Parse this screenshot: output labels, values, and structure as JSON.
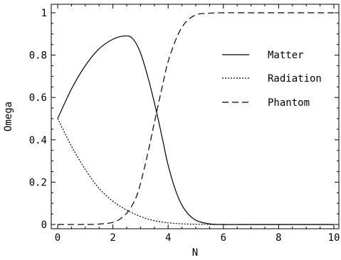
{
  "chart_data": {
    "type": "line",
    "title": "",
    "xlabel": "N",
    "ylabel": "Omega",
    "xlim": [
      0,
      10
    ],
    "ylim": [
      0,
      1
    ],
    "xticks": [
      "0",
      "2",
      "4",
      "6",
      "8",
      "10"
    ],
    "yticks": [
      "0",
      "0.2",
      "0.4",
      "0.6",
      "0.8",
      "1"
    ],
    "legend_position": "upper-right",
    "grid": false,
    "series": [
      {
        "name": "Matter",
        "style": "solid",
        "x": [
          0,
          0.5,
          1.0,
          1.5,
          2.0,
          2.4,
          2.7,
          3.0,
          3.3,
          3.6,
          3.8,
          4.0,
          4.3,
          4.6,
          5.0,
          5.5,
          6.0,
          7.0,
          8.0,
          9.0,
          10.0
        ],
        "y": [
          0.5,
          0.64,
          0.75,
          0.83,
          0.875,
          0.89,
          0.88,
          0.81,
          0.68,
          0.52,
          0.4,
          0.28,
          0.15,
          0.07,
          0.02,
          0.003,
          0.0,
          0.0,
          0.0,
          0.0,
          0.0
        ]
      },
      {
        "name": "Radiation",
        "style": "dotted",
        "x": [
          0,
          0.5,
          1.0,
          1.5,
          2.0,
          2.5,
          3.0,
          3.5,
          4.0,
          4.5,
          5.0,
          5.5,
          6.0,
          7.0,
          8.0,
          9.0,
          10.0
        ],
        "y": [
          0.5,
          0.37,
          0.26,
          0.17,
          0.11,
          0.068,
          0.038,
          0.018,
          0.008,
          0.003,
          0.001,
          0.0,
          0.0,
          0.0,
          0.0,
          0.0,
          0.0
        ]
      },
      {
        "name": "Phantom",
        "style": "dashed",
        "x": [
          0,
          1.0,
          1.5,
          2.0,
          2.3,
          2.6,
          2.9,
          3.2,
          3.5,
          3.8,
          4.0,
          4.3,
          4.6,
          5.0,
          5.5,
          6.0,
          7.0,
          8.0,
          9.0,
          10.0
        ],
        "y": [
          0.0,
          0.0,
          0.002,
          0.01,
          0.03,
          0.07,
          0.15,
          0.3,
          0.48,
          0.66,
          0.77,
          0.88,
          0.95,
          0.99,
          0.998,
          1.0,
          1.0,
          1.0,
          1.0,
          1.0
        ]
      }
    ]
  }
}
